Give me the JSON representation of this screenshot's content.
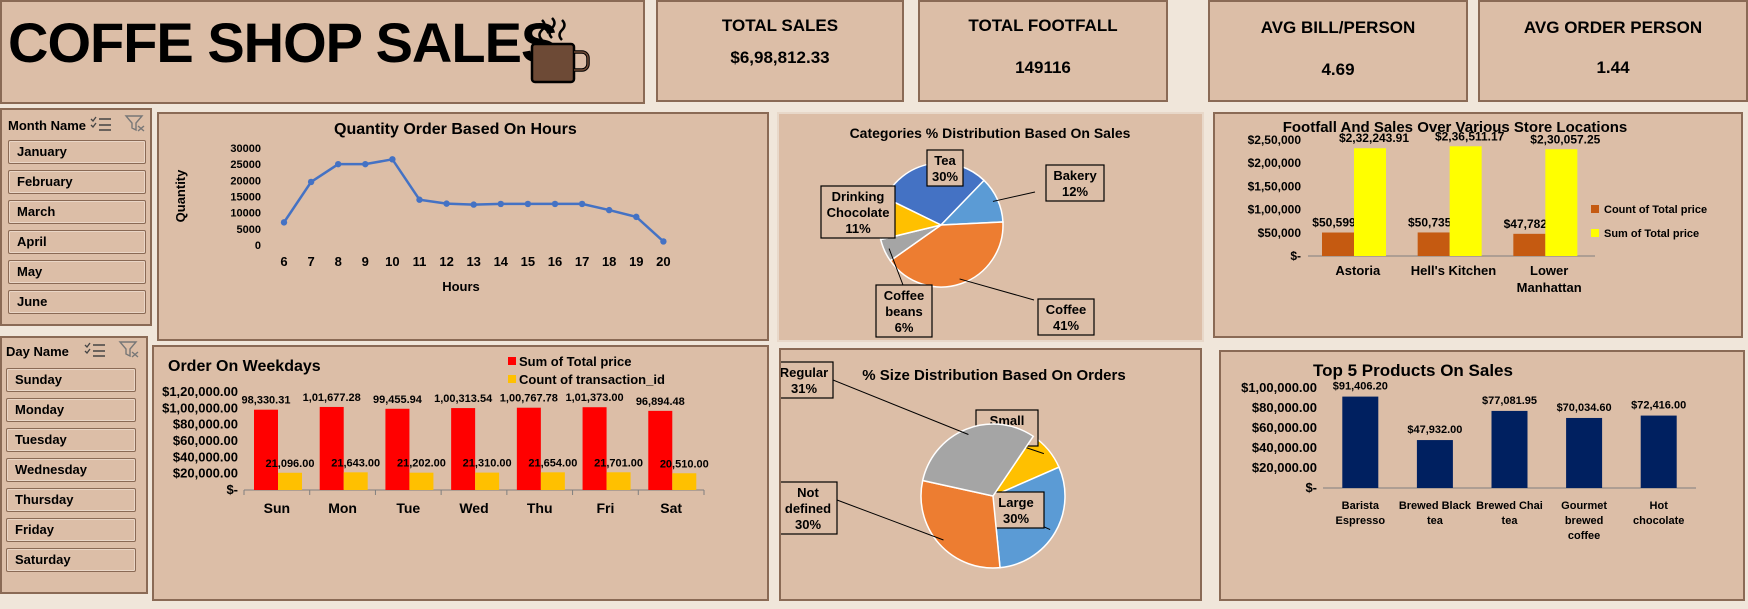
{
  "title": "COFFE SHOP SALES",
  "kpis": [
    {
      "label": "TOTAL SALES",
      "value": "$6,98,812.33"
    },
    {
      "label": "TOTAL FOOTFALL",
      "value": "149116"
    },
    {
      "label": "AVG BILL/PERSON",
      "value": "4.69"
    },
    {
      "label": "AVG ORDER PERSON",
      "value": "1.44"
    }
  ],
  "month_slicer": {
    "header": "Month Name",
    "items": [
      "January",
      "February",
      "March",
      "April",
      "May",
      "June"
    ]
  },
  "day_slicer": {
    "header": "Day Name",
    "items": [
      "Sunday",
      "Monday",
      "Tuesday",
      "Wednesday",
      "Thursday",
      "Friday",
      "Saturday"
    ]
  },
  "colors": {
    "panel": "#dcbea7",
    "border": "#8a6a55",
    "blue": "#4472c4",
    "orange": "#ed7d31",
    "gray": "#a5a5a5",
    "gold": "#ffc000",
    "lightblue": "#5b9bd5",
    "red": "#ff0000",
    "navy": "#002060",
    "yellow": "#ffff00",
    "rust": "#c55a11"
  },
  "chart_data": [
    {
      "id": "hours",
      "type": "line",
      "title": "Quantity Order Based On Hours",
      "xlabel": "Hours",
      "ylabel": "Quantity",
      "categories": [
        "6",
        "7",
        "8",
        "9",
        "10",
        "11",
        "12",
        "13",
        "14",
        "15",
        "16",
        "17",
        "18",
        "19",
        "20"
      ],
      "values": [
        7000,
        19500,
        25000,
        25000,
        26500,
        14000,
        12800,
        12500,
        12700,
        12700,
        12700,
        12700,
        10800,
        8700,
        1100
      ],
      "yticks": [
        "30000",
        "25000",
        "20000",
        "15000",
        "10000",
        "5000",
        "0"
      ],
      "ylim": [
        0,
        30000
      ]
    },
    {
      "id": "categories",
      "type": "pie",
      "title": "Categories % Distribution Based On Sales",
      "slices": [
        {
          "label": "Tea",
          "pct": "30%",
          "value": 30,
          "color": "#4472c4"
        },
        {
          "label": "Bakery",
          "pct": "12%",
          "value": 12,
          "color": "#5b9bd5"
        },
        {
          "label": "Coffee",
          "pct": "41%",
          "value": 41,
          "color": "#ed7d31"
        },
        {
          "label": "Coffee beans",
          "pct": "6%",
          "value": 6,
          "color": "#a5a5a5"
        },
        {
          "label": "Drinking Chocolate",
          "pct": "11%",
          "value": 11,
          "color": "#ffc000"
        }
      ]
    },
    {
      "id": "locations",
      "type": "bar",
      "title": "Footfall And Sales Over Various Store Locations",
      "categories": [
        "Astoria",
        "Hell's Kitchen",
        "Lower Manhattan"
      ],
      "series": [
        {
          "name": "Count of Total price",
          "values": [
            50599,
            50735,
            47782
          ],
          "labels": [
            "$50,599",
            "$50,735",
            "$47,782"
          ],
          "color": "#c55a11"
        },
        {
          "name": "Sum of Total price",
          "values": [
            232243.91,
            236511.17,
            230057.25
          ],
          "labels": [
            "$2,32,243.91",
            "$2,36,511.17",
            "$2,30,057.25"
          ],
          "color": "#ffff00"
        }
      ],
      "yticks": [
        "$2,50,000",
        "$2,00,000",
        "$1,50,000",
        "$1,00,000",
        "$50,000",
        "$-"
      ],
      "ylim": [
        0,
        250000
      ]
    },
    {
      "id": "weekdays",
      "type": "bar",
      "title": "Order On Weekdays",
      "categories": [
        "Sun",
        "Mon",
        "Tue",
        "Wed",
        "Thu",
        "Fri",
        "Sat"
      ],
      "series": [
        {
          "name": "Sum of Total price",
          "values": [
            98330.31,
            101677.28,
            99455.94,
            100313.54,
            100767.78,
            101373.0,
            96894.48
          ],
          "labels": [
            "98,330.31",
            "1,01,677.28",
            "99,455.94",
            "1,00,313.54",
            "1,00,767.78",
            "1,01,373.00",
            "96,894.48"
          ],
          "color": "#ff0000"
        },
        {
          "name": "Count of transaction_id",
          "values": [
            21096,
            21643,
            21202,
            21310,
            21654,
            21701,
            20510
          ],
          "labels": [
            "21,096.00",
            "21,643.00",
            "21,202.00",
            "21,310.00",
            "21,654.00",
            "21,701.00",
            "20,510.00"
          ],
          "color": "#ffc000"
        }
      ],
      "yticks": [
        "$1,20,000.00",
        "$1,00,000.00",
        "$80,000.00",
        "$60,000.00",
        "$40,000.00",
        "$20,000.00",
        "$-"
      ],
      "ylim": [
        0,
        120000
      ]
    },
    {
      "id": "sizes",
      "type": "pie",
      "title": "% Size Distribution Based On Orders",
      "slices": [
        {
          "label": "Small",
          "pct": "9%",
          "value": 9,
          "color": "#ffc000"
        },
        {
          "label": "Large",
          "pct": "30%",
          "value": 30,
          "color": "#5b9bd5"
        },
        {
          "label": "Not defined",
          "pct": "30%",
          "value": 30,
          "color": "#ed7d31"
        },
        {
          "label": "Regular",
          "pct": "31%",
          "value": 31,
          "color": "#a5a5a5"
        }
      ]
    },
    {
      "id": "products",
      "type": "bar",
      "title": "Top 5 Products On Sales",
      "categories": [
        "Barista Espresso",
        "Brewed Black tea",
        "Brewed Chai tea",
        "Gourmet brewed coffee",
        "Hot chocolate"
      ],
      "values": [
        91406.2,
        47932.0,
        77081.95,
        70034.6,
        72416.0
      ],
      "labels": [
        "$91,406.20",
        "$47,932.00",
        "$77,081.95",
        "$70,034.60",
        "$72,416.00"
      ],
      "yticks": [
        "$1,00,000.00",
        "$80,000.00",
        "$60,000.00",
        "$40,000.00",
        "$20,000.00",
        "$-"
      ],
      "ylim": [
        0,
        100000
      ]
    }
  ]
}
